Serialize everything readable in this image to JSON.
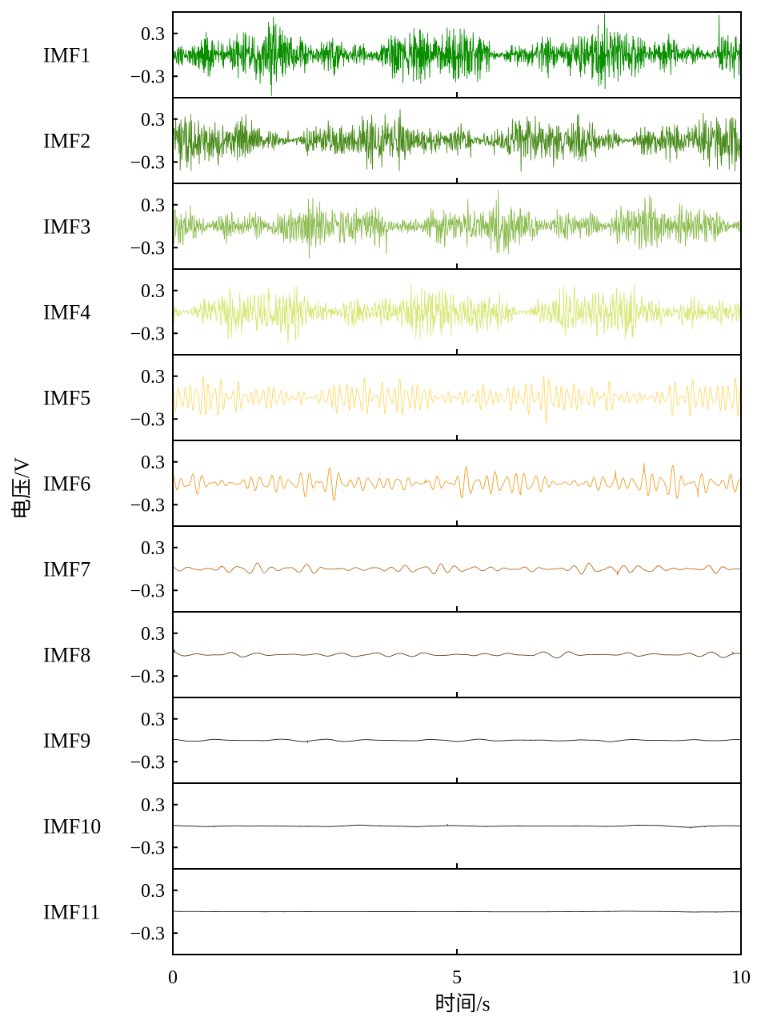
{
  "chart_data": {
    "type": "line",
    "title": "",
    "xlabel": "时间/s",
    "ylabel": "电压/V",
    "xlim": [
      0,
      10
    ],
    "ylim": [
      -0.6,
      0.6
    ],
    "x_ticks": [
      {
        "value": 0,
        "label": "0"
      },
      {
        "value": 5,
        "label": "5"
      },
      {
        "value": 10,
        "label": "10"
      }
    ],
    "y_ticks": [
      {
        "value": 0.3,
        "label": "0.3"
      },
      {
        "value": -0.3,
        "label": "−0.3"
      }
    ],
    "grid": false,
    "legend": "none",
    "series": [
      {
        "name": "IMF1",
        "color": "#0a8f00",
        "amplitude": 0.3,
        "peak": 0.6,
        "cycles": 700,
        "seed": 11
      },
      {
        "name": "IMF2",
        "color": "#4a8c1c",
        "amplitude": 0.28,
        "peak": 0.55,
        "cycles": 420,
        "seed": 22
      },
      {
        "name": "IMF3",
        "color": "#8cbc4f",
        "amplitude": 0.28,
        "peak": 0.55,
        "cycles": 260,
        "seed": 33
      },
      {
        "name": "IMF4",
        "color": "#d8e87a",
        "amplitude": 0.3,
        "peak": 0.55,
        "cycles": 160,
        "seed": 44
      },
      {
        "name": "IMF5",
        "color": "#ffd966",
        "amplitude": 0.22,
        "peak": 0.45,
        "cycles": 95,
        "seed": 55
      },
      {
        "name": "IMF6",
        "color": "#f39a1f",
        "amplitude": 0.16,
        "peak": 0.35,
        "cycles": 58,
        "seed": 66
      },
      {
        "name": "IMF7",
        "color": "#c0651a",
        "amplitude": 0.06,
        "peak": 0.16,
        "cycles": 34,
        "seed": 77
      },
      {
        "name": "IMF8",
        "color": "#6b3f12",
        "amplitude": 0.035,
        "peak": 0.09,
        "cycles": 20,
        "seed": 88
      },
      {
        "name": "IMF9",
        "color": "#1a1a1a",
        "amplitude": 0.02,
        "peak": 0.05,
        "cycles": 11,
        "seed": 99
      },
      {
        "name": "IMF10",
        "color": "#111111",
        "amplitude": 0.012,
        "peak": 0.03,
        "cycles": 6,
        "seed": 111
      },
      {
        "name": "IMF11",
        "color": "#111111",
        "amplitude": 0.006,
        "peak": 0.012,
        "cycles": 2.5,
        "seed": 123
      }
    ]
  }
}
